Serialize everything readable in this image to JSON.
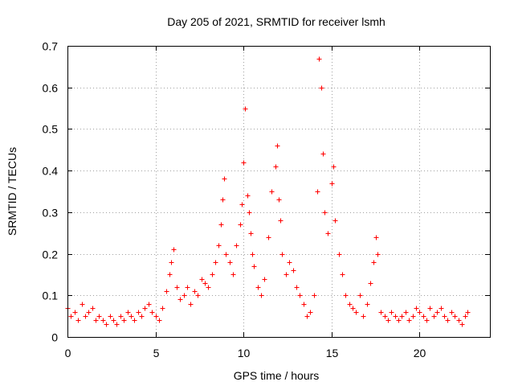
{
  "chart_data": {
    "type": "scatter",
    "title": "Day 205 of 2021, SRMTID for receiver lsmh",
    "xlabel": "GPS time / hours",
    "ylabel": "SRMTID / TECUs",
    "xlim": [
      0,
      24
    ],
    "ylim": [
      0,
      0.7
    ],
    "x_ticks": [
      0,
      5,
      10,
      15,
      20
    ],
    "x_tick_labels": [
      "0",
      "5",
      "10",
      "15",
      "20"
    ],
    "y_ticks": [
      0,
      0.1,
      0.2,
      0.3,
      0.4,
      0.5,
      0.6,
      0.7
    ],
    "y_tick_labels": [
      "0",
      "0.1",
      "0.2",
      "0.3",
      "0.4",
      "0.5",
      "0.6",
      "0.7"
    ],
    "grid": true,
    "marker": "+",
    "color": "#ff0000",
    "series": [
      {
        "name": "SRMTID",
        "x": [
          0.0,
          0.2,
          0.4,
          0.6,
          0.8,
          1.0,
          1.2,
          1.4,
          1.6,
          1.8,
          2.0,
          2.2,
          2.4,
          2.6,
          2.8,
          3.0,
          3.2,
          3.4,
          3.6,
          3.8,
          4.0,
          4.2,
          4.4,
          4.6,
          4.8,
          5.0,
          5.2,
          5.4,
          5.6,
          5.8,
          5.9,
          6.0,
          6.2,
          6.4,
          6.6,
          6.8,
          7.0,
          7.2,
          7.4,
          7.6,
          7.8,
          8.0,
          8.2,
          8.4,
          8.6,
          8.7,
          8.8,
          8.9,
          9.0,
          9.2,
          9.4,
          9.6,
          9.8,
          9.9,
          10.0,
          10.1,
          10.2,
          10.3,
          10.4,
          10.5,
          10.6,
          10.8,
          11.0,
          11.2,
          11.4,
          11.6,
          11.8,
          11.9,
          12.0,
          12.1,
          12.2,
          12.4,
          12.6,
          12.8,
          13.0,
          13.2,
          13.4,
          13.6,
          13.8,
          14.0,
          14.2,
          14.3,
          14.4,
          14.5,
          14.6,
          14.8,
          15.0,
          15.1,
          15.2,
          15.4,
          15.6,
          15.8,
          16.0,
          16.2,
          16.4,
          16.6,
          16.8,
          17.0,
          17.2,
          17.4,
          17.5,
          17.6,
          17.8,
          18.0,
          18.2,
          18.4,
          18.6,
          18.8,
          19.0,
          19.2,
          19.4,
          19.6,
          19.8,
          20.0,
          20.2,
          20.4,
          20.6,
          20.8,
          21.0,
          21.2,
          21.4,
          21.6,
          21.8,
          22.0,
          22.2,
          22.4,
          22.6,
          22.7
        ],
        "y": [
          0.07,
          0.05,
          0.06,
          0.04,
          0.08,
          0.05,
          0.06,
          0.07,
          0.04,
          0.05,
          0.04,
          0.03,
          0.05,
          0.04,
          0.03,
          0.05,
          0.04,
          0.06,
          0.05,
          0.04,
          0.06,
          0.05,
          0.07,
          0.08,
          0.06,
          0.05,
          0.04,
          0.07,
          0.11,
          0.15,
          0.18,
          0.21,
          0.12,
          0.09,
          0.1,
          0.12,
          0.08,
          0.11,
          0.1,
          0.14,
          0.13,
          0.12,
          0.15,
          0.18,
          0.22,
          0.27,
          0.33,
          0.38,
          0.2,
          0.18,
          0.15,
          0.22,
          0.27,
          0.32,
          0.42,
          0.55,
          0.34,
          0.3,
          0.25,
          0.2,
          0.17,
          0.12,
          0.1,
          0.14,
          0.24,
          0.35,
          0.41,
          0.46,
          0.33,
          0.28,
          0.2,
          0.15,
          0.18,
          0.16,
          0.12,
          0.1,
          0.08,
          0.05,
          0.06,
          0.1,
          0.35,
          0.67,
          0.6,
          0.44,
          0.3,
          0.25,
          0.37,
          0.41,
          0.28,
          0.2,
          0.15,
          0.1,
          0.08,
          0.07,
          0.06,
          0.1,
          0.05,
          0.08,
          0.13,
          0.18,
          0.24,
          0.2,
          0.06,
          0.05,
          0.04,
          0.06,
          0.05,
          0.04,
          0.05,
          0.06,
          0.04,
          0.05,
          0.07,
          0.06,
          0.05,
          0.04,
          0.07,
          0.05,
          0.06,
          0.07,
          0.05,
          0.04,
          0.06,
          0.05,
          0.04,
          0.03,
          0.05,
          0.06
        ]
      }
    ]
  }
}
